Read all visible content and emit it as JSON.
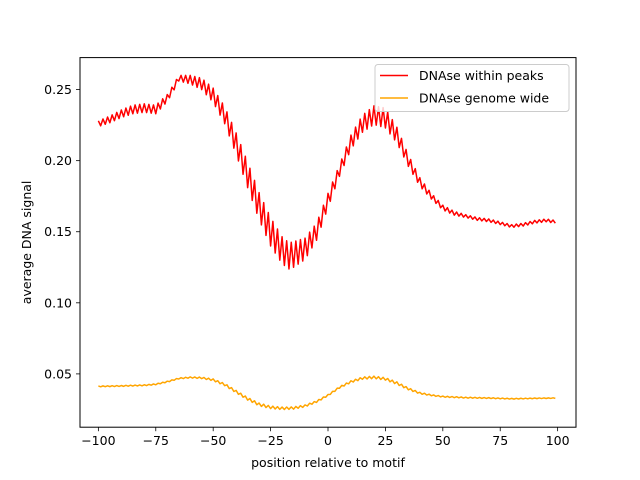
{
  "chart_data": {
    "type": "line",
    "title": "",
    "xlabel": "position relative to motif",
    "ylabel": "average DNA signal",
    "xlim": [
      -108,
      108
    ],
    "ylim": [
      0.0125,
      0.2725
    ],
    "xticks": [
      -100,
      -75,
      -50,
      -25,
      0,
      25,
      50,
      75,
      100
    ],
    "xtick_labels": [
      "−100",
      "−75",
      "−50",
      "−25",
      "0",
      "25",
      "50",
      "75",
      "100"
    ],
    "yticks": [
      0.05,
      0.1,
      0.15,
      0.2,
      0.25
    ],
    "ytick_labels": [
      "0.05",
      "0.10",
      "0.15",
      "0.20",
      "0.25"
    ],
    "grid": false,
    "legend": "top-right",
    "series": [
      {
        "name": "DNAse within peaks",
        "color": "#ff0000",
        "points": [
          [
            -100,
            0.226
          ],
          [
            -95,
            0.229
          ],
          [
            -90,
            0.233
          ],
          [
            -85,
            0.236
          ],
          [
            -80,
            0.237
          ],
          [
            -75,
            0.236
          ],
          [
            -70,
            0.244
          ],
          [
            -67,
            0.252
          ],
          [
            -65,
            0.258
          ],
          [
            -60,
            0.257
          ],
          [
            -55,
            0.254
          ],
          [
            -50,
            0.246
          ],
          [
            -45,
            0.232
          ],
          [
            -40,
            0.212
          ],
          [
            -35,
            0.19
          ],
          [
            -30,
            0.168
          ],
          [
            -25,
            0.15
          ],
          [
            -20,
            0.137
          ],
          [
            -17,
            0.133
          ],
          [
            -15,
            0.134
          ],
          [
            -10,
            0.138
          ],
          [
            -5,
            0.15
          ],
          [
            0,
            0.172
          ],
          [
            5,
            0.193
          ],
          [
            10,
            0.213
          ],
          [
            15,
            0.226
          ],
          [
            20,
            0.232
          ],
          [
            25,
            0.23
          ],
          [
            30,
            0.218
          ],
          [
            35,
            0.2
          ],
          [
            40,
            0.185
          ],
          [
            45,
            0.175
          ],
          [
            50,
            0.167
          ],
          [
            55,
            0.163
          ],
          [
            60,
            0.161
          ],
          [
            65,
            0.159
          ],
          [
            70,
            0.158
          ],
          [
            75,
            0.156
          ],
          [
            80,
            0.154
          ],
          [
            85,
            0.155
          ],
          [
            90,
            0.157
          ],
          [
            95,
            0.158
          ],
          [
            99,
            0.157
          ]
        ],
        "oscillation": [
          [
            -100,
            0.002
          ],
          [
            -85,
            0.003
          ],
          [
            -75,
            0.003
          ],
          [
            -65,
            0.002
          ],
          [
            -55,
            0.004
          ],
          [
            -45,
            0.006
          ],
          [
            -35,
            0.009
          ],
          [
            -25,
            0.01
          ],
          [
            -15,
            0.009
          ],
          [
            -5,
            0.006
          ],
          [
            5,
            0.004
          ],
          [
            15,
            0.006
          ],
          [
            25,
            0.007
          ],
          [
            35,
            0.004
          ],
          [
            45,
            0.002
          ],
          [
            60,
            0.001
          ],
          [
            99,
            0.001
          ]
        ]
      },
      {
        "name": "DNAse genome wide",
        "color": "#ffa500",
        "points": [
          [
            -100,
            0.0412
          ],
          [
            -90,
            0.0415
          ],
          [
            -80,
            0.042
          ],
          [
            -75,
            0.0427
          ],
          [
            -70,
            0.0445
          ],
          [
            -65,
            0.0468
          ],
          [
            -60,
            0.0475
          ],
          [
            -55,
            0.0472
          ],
          [
            -50,
            0.0458
          ],
          [
            -45,
            0.0425
          ],
          [
            -40,
            0.0375
          ],
          [
            -35,
            0.0325
          ],
          [
            -30,
            0.0285
          ],
          [
            -25,
            0.0265
          ],
          [
            -20,
            0.0258
          ],
          [
            -15,
            0.026
          ],
          [
            -10,
            0.0275
          ],
          [
            -5,
            0.0305
          ],
          [
            0,
            0.035
          ],
          [
            5,
            0.0405
          ],
          [
            10,
            0.0445
          ],
          [
            15,
            0.047
          ],
          [
            20,
            0.0476
          ],
          [
            25,
            0.0465
          ],
          [
            30,
            0.0435
          ],
          [
            35,
            0.0395
          ],
          [
            40,
            0.0365
          ],
          [
            45,
            0.035
          ],
          [
            50,
            0.034
          ],
          [
            60,
            0.0333
          ],
          [
            70,
            0.033
          ],
          [
            80,
            0.0325
          ],
          [
            90,
            0.0328
          ],
          [
            99,
            0.033
          ]
        ],
        "oscillation": [
          [
            -100,
            0.0003
          ],
          [
            -60,
            0.0004
          ],
          [
            -45,
            0.0008
          ],
          [
            -30,
            0.001
          ],
          [
            -15,
            0.0008
          ],
          [
            0,
            0.0005
          ],
          [
            15,
            0.0008
          ],
          [
            30,
            0.0009
          ],
          [
            45,
            0.0004
          ],
          [
            99,
            0.0002
          ]
        ]
      }
    ]
  }
}
